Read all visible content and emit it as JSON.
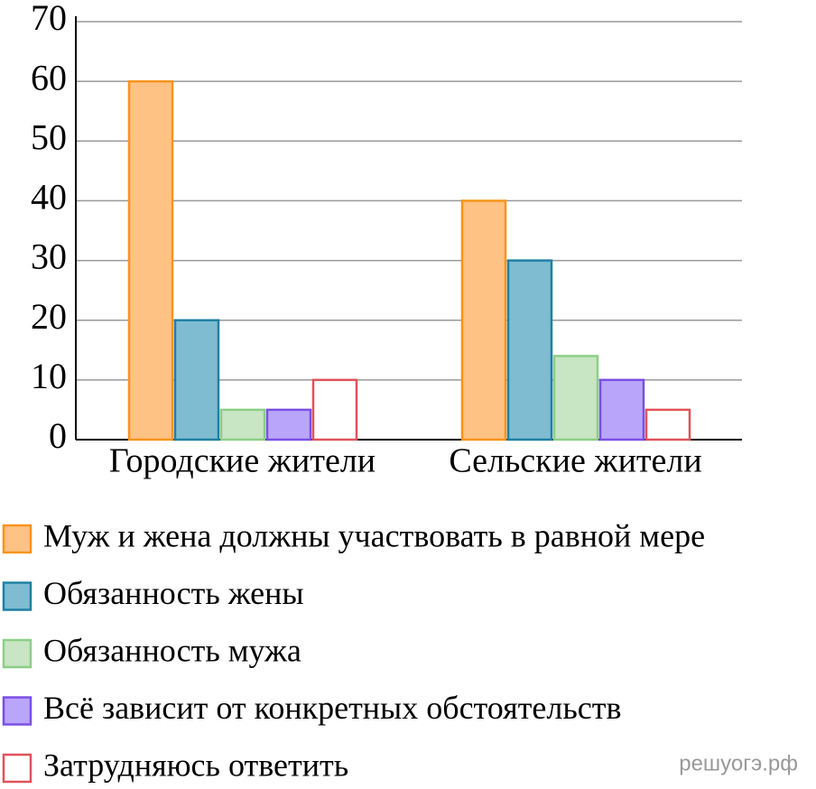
{
  "chart_data": {
    "type": "bar",
    "categories": [
      "Городские жители",
      "Сельские жители"
    ],
    "series": [
      {
        "name": "Муж и жена должны участвовать в равной мере",
        "color": "#ffc285",
        "edgecolor": "#f7941d",
        "values": [
          60,
          40
        ]
      },
      {
        "name": "Обязанность жены",
        "color": "#7fbcd2",
        "edgecolor": "#1f80a4",
        "values": [
          20,
          30
        ]
      },
      {
        "name": "Обязанность мужа",
        "color": "#c8e6c3",
        "edgecolor": "#8ccf86",
        "values": [
          5,
          14
        ]
      },
      {
        "name": "Всё зависит от конкретных обстоятельств",
        "color": "#b9a6fb",
        "edgecolor": "#7b4fe3",
        "values": [
          5,
          10
        ]
      },
      {
        "name": "Затрудняюсь ответить",
        "color": "#ffffff",
        "edgecolor": "#e0525a",
        "values": [
          10,
          5
        ]
      }
    ],
    "ylim": [
      0,
      70
    ],
    "yticks": [
      0,
      10,
      20,
      30,
      40,
      50,
      60,
      70
    ],
    "grid": true,
    "legend": "bottom",
    "watermark": "решуогэ.рф"
  }
}
